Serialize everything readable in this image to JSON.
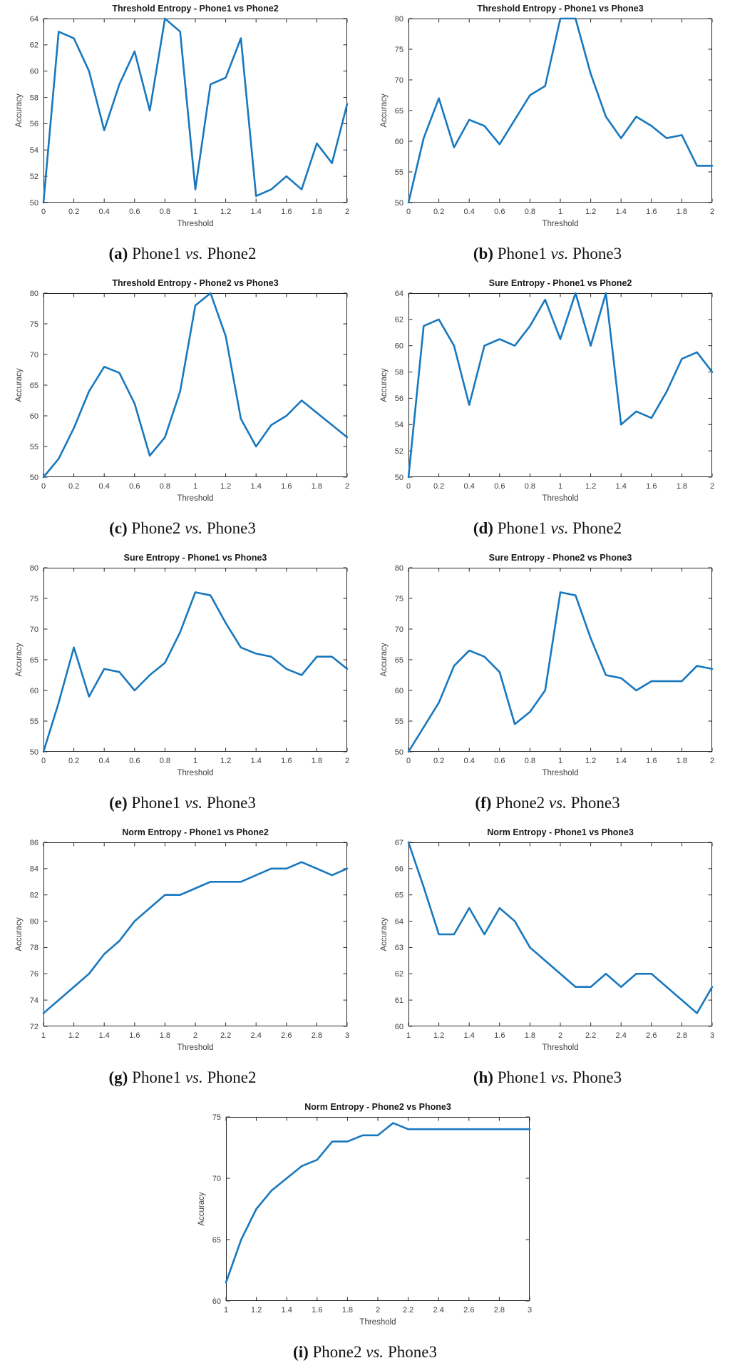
{
  "style": {
    "line_color": "#1878be",
    "axis_color": "#262626",
    "tick_text_color": "#404040",
    "title_color": "#1a1a1a",
    "background": "#ffffff"
  },
  "chart_data": [
    {
      "id": "a",
      "type": "line",
      "title": "Threshold Entropy - Phone1 vs Phone2",
      "xlabel": "Threshold",
      "ylabel": "Accuracy",
      "x_start": 0,
      "x_step": 0.1,
      "xlim": [
        0,
        2
      ],
      "ylim": [
        50,
        64
      ],
      "xticks": [
        "0",
        "0.2",
        "0.4",
        "0.6",
        "0.8",
        "1",
        "1.2",
        "1.4",
        "1.6",
        "1.8",
        "2"
      ],
      "yticks": [
        "50",
        "52",
        "54",
        "56",
        "58",
        "60",
        "62",
        "64"
      ],
      "values": [
        50,
        63,
        62.5,
        60,
        55.5,
        59,
        61.5,
        57,
        64,
        63,
        51,
        59,
        59.5,
        62.5,
        50.5,
        51,
        52,
        51,
        54.5,
        53,
        57.5
      ],
      "caption": {
        "label": "(a)",
        "pre": "Phone1",
        "mid": "vs.",
        "post": "Phone2"
      }
    },
    {
      "id": "b",
      "type": "line",
      "title": "Threshold Entropy - Phone1 vs Phone3",
      "xlabel": "Threshold",
      "ylabel": "Accuracy",
      "x_start": 0,
      "x_step": 0.1,
      "xlim": [
        0,
        2
      ],
      "ylim": [
        50,
        80
      ],
      "xticks": [
        "0",
        "0.2",
        "0.4",
        "0.6",
        "0.8",
        "1",
        "1.2",
        "1.4",
        "1.6",
        "1.8",
        "2"
      ],
      "yticks": [
        "50",
        "55",
        "60",
        "65",
        "70",
        "75",
        "80"
      ],
      "values": [
        50,
        60.5,
        67,
        59,
        63.5,
        62.5,
        59.5,
        63.5,
        67.5,
        69,
        80,
        80,
        71,
        64,
        60.5,
        64,
        62.5,
        60.5,
        61,
        56,
        56
      ],
      "caption": {
        "label": "(b)",
        "pre": "Phone1",
        "mid": "vs.",
        "post": "Phone3"
      }
    },
    {
      "id": "c",
      "type": "line",
      "title": "Threshold Entropy - Phone2 vs Phone3",
      "xlabel": "Threshold",
      "ylabel": "Accuracy",
      "x_start": 0,
      "x_step": 0.1,
      "xlim": [
        0,
        2
      ],
      "ylim": [
        50,
        80
      ],
      "xticks": [
        "0",
        "0.2",
        "0.4",
        "0.6",
        "0.8",
        "1",
        "1.2",
        "1.4",
        "1.6",
        "1.8",
        "2"
      ],
      "yticks": [
        "50",
        "55",
        "60",
        "65",
        "70",
        "75",
        "80"
      ],
      "values": [
        50,
        53,
        58,
        64,
        68,
        67,
        62,
        53.5,
        56.5,
        64,
        78,
        80,
        73,
        59.5,
        55,
        58.5,
        60,
        62.5,
        60.5,
        58.5,
        56.5
      ],
      "caption": {
        "label": "(c)",
        "pre": "Phone2",
        "mid": "vs.",
        "post": "Phone3"
      }
    },
    {
      "id": "d",
      "type": "line",
      "title": "Sure Entropy - Phone1 vs Phone2",
      "xlabel": "Threshold",
      "ylabel": "Accuracy",
      "x_start": 0,
      "x_step": 0.1,
      "xlim": [
        0,
        2
      ],
      "ylim": [
        50,
        64
      ],
      "xticks": [
        "0",
        "0.2",
        "0.4",
        "0.6",
        "0.8",
        "1",
        "1.2",
        "1.4",
        "1.6",
        "1.8",
        "2"
      ],
      "yticks": [
        "50",
        "52",
        "54",
        "56",
        "58",
        "60",
        "62",
        "64"
      ],
      "values": [
        50,
        61.5,
        62,
        60,
        55.5,
        60,
        60.5,
        60,
        61.5,
        63.5,
        60.5,
        64,
        60,
        64,
        54,
        55,
        54.5,
        56.5,
        59,
        59.5,
        58
      ],
      "caption": {
        "label": "(d)",
        "pre": "Phone1",
        "mid": "vs.",
        "post": "Phone2"
      }
    },
    {
      "id": "e",
      "type": "line",
      "title": "Sure Entropy - Phone1 vs Phone3",
      "xlabel": "Threshold",
      "ylabel": "Accuracy",
      "x_start": 0,
      "x_step": 0.1,
      "xlim": [
        0,
        2
      ],
      "ylim": [
        50,
        80
      ],
      "xticks": [
        "0",
        "0.2",
        "0.4",
        "0.6",
        "0.8",
        "1",
        "1.2",
        "1.4",
        "1.6",
        "1.8",
        "2"
      ],
      "yticks": [
        "50",
        "55",
        "60",
        "65",
        "70",
        "75",
        "80"
      ],
      "values": [
        50,
        58,
        67,
        59,
        63.5,
        63,
        60,
        62.5,
        64.5,
        69.5,
        76,
        75.5,
        71,
        67,
        66,
        65.5,
        63.5,
        62.5,
        65.5,
        65.5,
        63.5
      ],
      "caption": {
        "label": "(e)",
        "pre": "Phone1",
        "mid": "vs.",
        "post": "Phone3"
      }
    },
    {
      "id": "f",
      "type": "line",
      "title": "Sure Entropy - Phone2 vs Phone3",
      "xlabel": "Threshold",
      "ylabel": "Accuracy",
      "x_start": 0,
      "x_step": 0.1,
      "xlim": [
        0,
        2
      ],
      "ylim": [
        50,
        80
      ],
      "xticks": [
        "0",
        "0.2",
        "0.4",
        "0.6",
        "0.8",
        "1",
        "1.2",
        "1.4",
        "1.6",
        "1.8",
        "2"
      ],
      "yticks": [
        "50",
        "55",
        "60",
        "65",
        "70",
        "75",
        "80"
      ],
      "values": [
        50,
        54,
        58,
        64,
        66.5,
        65.5,
        63,
        54.5,
        56.5,
        60,
        76,
        75.5,
        68.5,
        62.5,
        62,
        60,
        61.5,
        61.5,
        61.5,
        64,
        63.5
      ],
      "caption": {
        "label": "(f)",
        "pre": "Phone2",
        "mid": "vs.",
        "post": "Phone3"
      }
    },
    {
      "id": "g",
      "type": "line",
      "title": "Norm Entropy - Phone1 vs Phone2",
      "xlabel": "Threshold",
      "ylabel": "Accuracy",
      "x_start": 1,
      "x_step": 0.1,
      "xlim": [
        1,
        3
      ],
      "ylim": [
        72,
        86
      ],
      "xticks": [
        "1",
        "1.2",
        "1.4",
        "1.6",
        "1.8",
        "2",
        "2.2",
        "2.4",
        "2.6",
        "2.8",
        "3"
      ],
      "yticks": [
        "72",
        "74",
        "76",
        "78",
        "80",
        "82",
        "84",
        "86"
      ],
      "values": [
        73,
        74,
        75,
        76,
        77.5,
        78.5,
        80,
        81,
        82,
        82,
        82.5,
        83,
        83,
        83,
        83.5,
        84,
        84,
        84.5,
        84,
        83.5,
        84
      ],
      "caption": {
        "label": "(g)",
        "pre": "Phone1",
        "mid": "vs.",
        "post": "Phone2"
      }
    },
    {
      "id": "h",
      "type": "line",
      "title": "Norm Entropy - Phone1 vs Phone3",
      "xlabel": "Threshold",
      "ylabel": "Accuracy",
      "x_start": 1,
      "x_step": 0.1,
      "xlim": [
        1,
        3
      ],
      "ylim": [
        60,
        67
      ],
      "xticks": [
        "1",
        "1.2",
        "1.4",
        "1.6",
        "1.8",
        "2",
        "2.2",
        "2.4",
        "2.6",
        "2.8",
        "3"
      ],
      "yticks": [
        "60",
        "61",
        "62",
        "63",
        "64",
        "65",
        "66",
        "67"
      ],
      "values": [
        67,
        65.3,
        63.5,
        63.5,
        64.5,
        63.5,
        64.5,
        64,
        63,
        62.5,
        62,
        61.5,
        61.5,
        62,
        61.5,
        62,
        62,
        61.5,
        61,
        60.5,
        61.5
      ],
      "caption": {
        "label": "(h)",
        "pre": "Phone1",
        "mid": "vs.",
        "post": "Phone3"
      }
    },
    {
      "id": "i",
      "type": "line",
      "title": "Norm Entropy - Phone2 vs Phone3",
      "xlabel": "Threshold",
      "ylabel": "Accuracy",
      "x_start": 1,
      "x_step": 0.1,
      "xlim": [
        1,
        3
      ],
      "ylim": [
        60,
        75
      ],
      "xticks": [
        "1",
        "1.2",
        "1.4",
        "1.6",
        "1.8",
        "2",
        "2.2",
        "2.4",
        "2.6",
        "2.8",
        "3"
      ],
      "yticks": [
        "60",
        "65",
        "70",
        "75"
      ],
      "values": [
        61.5,
        65,
        67.5,
        69,
        70,
        71,
        71.5,
        73,
        73,
        73.5,
        73.5,
        74.5,
        74,
        74,
        74,
        74,
        74,
        74,
        74,
        74,
        74
      ],
      "caption": {
        "label": "(i)",
        "pre": "Phone2",
        "mid": "vs.",
        "post": "Phone3"
      }
    }
  ]
}
